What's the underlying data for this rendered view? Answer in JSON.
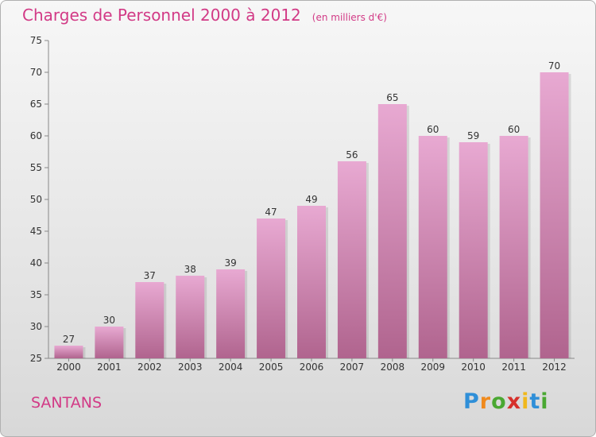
{
  "title": "Charges de Personnel 2000 à 2012",
  "unit_note": "(en milliers d'€)",
  "commune": "SANTANS",
  "logo": {
    "letters": [
      "P",
      "r",
      "o",
      "x",
      "i",
      "t",
      "i"
    ],
    "colors": [
      "#2f8fd8",
      "#f08a1c",
      "#4aa832",
      "#d6302b",
      "#f0b81c",
      "#2f8fd8",
      "#4aa832"
    ]
  },
  "colors": {
    "bar_top": "#e8a9d2",
    "bar_bottom": "#b0648e",
    "accent": "#d23a86"
  },
  "chart_data": {
    "type": "bar",
    "categories": [
      "2000",
      "2001",
      "2002",
      "2003",
      "2004",
      "2005",
      "2006",
      "2007",
      "2008",
      "2009",
      "2010",
      "2011",
      "2012"
    ],
    "values": [
      27,
      30,
      37,
      38,
      39,
      47,
      49,
      56,
      65,
      60,
      59,
      60,
      70
    ],
    "data_labels": [
      "27",
      "30",
      "37",
      "38",
      "39",
      "47",
      "49",
      "56",
      "65",
      "60",
      "59",
      "60",
      "70"
    ],
    "ylim": [
      25,
      75
    ],
    "yticks": [
      25,
      30,
      35,
      40,
      45,
      50,
      55,
      60,
      65,
      70,
      75
    ],
    "grid": false,
    "xlabel": "",
    "ylabel": ""
  }
}
